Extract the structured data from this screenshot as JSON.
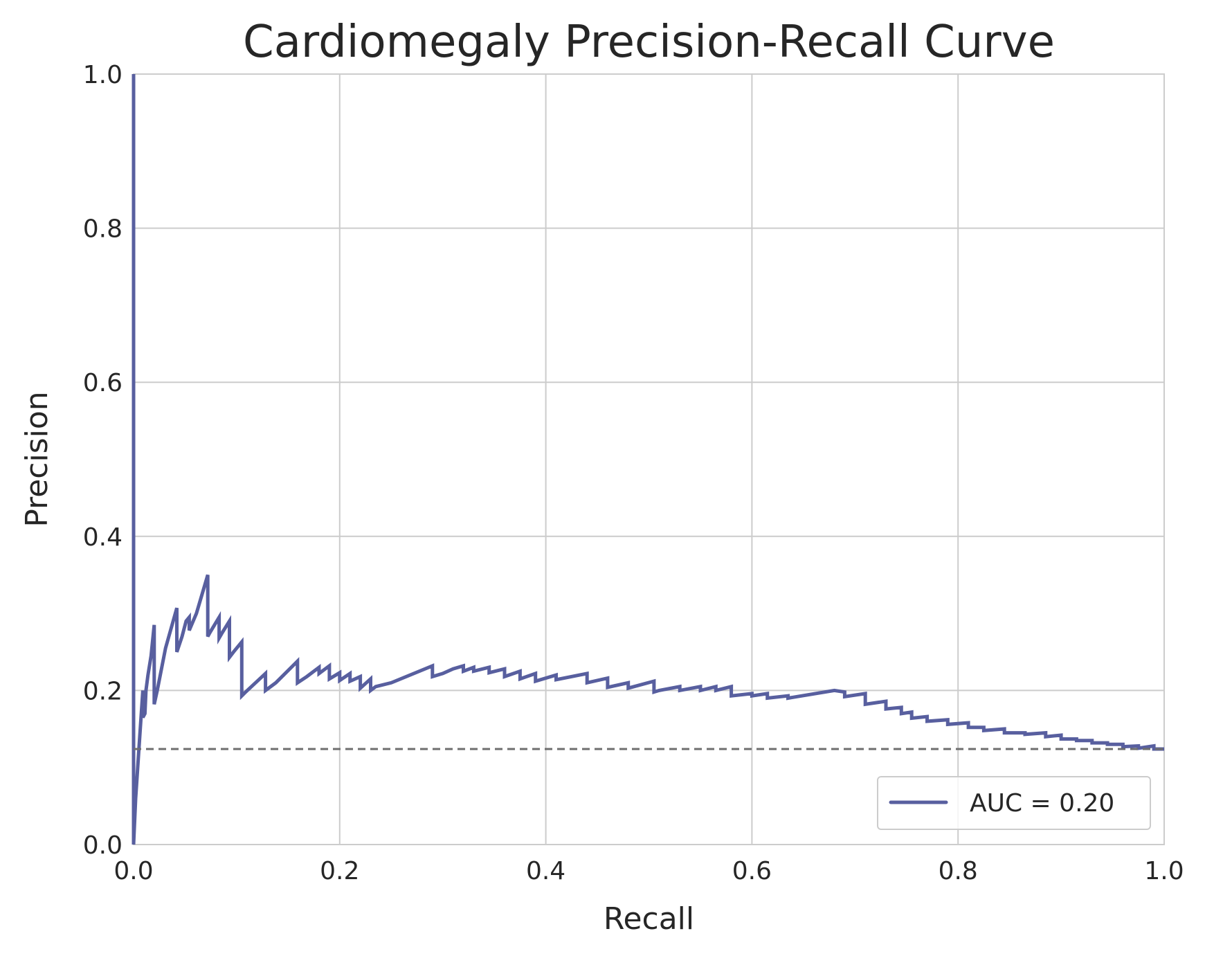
{
  "chart_data": {
    "type": "line",
    "title": "Cardiomegaly Precision-Recall Curve",
    "xlabel": "Recall",
    "ylabel": "Precision",
    "xlim": [
      0.0,
      1.0
    ],
    "ylim": [
      0.0,
      1.0
    ],
    "xticks": [
      "0.0",
      "0.2",
      "0.4",
      "0.6",
      "0.8",
      "1.0"
    ],
    "yticks": [
      "0.0",
      "0.2",
      "0.4",
      "0.6",
      "0.8",
      "1.0"
    ],
    "grid": true,
    "legend_position": "lower-right",
    "colors": {
      "curve": "#585f9f",
      "baseline": "#6e6e6e"
    },
    "series": [
      {
        "name": "AUC = 0.20",
        "style": "solid",
        "x": [
          0.0,
          0.0,
          0.0,
          0.002,
          0.006,
          0.009,
          0.009,
          0.011,
          0.012,
          0.014,
          0.017,
          0.02,
          0.02,
          0.023,
          0.031,
          0.042,
          0.042,
          0.047,
          0.051,
          0.054,
          0.054,
          0.061,
          0.072,
          0.072,
          0.074,
          0.083,
          0.083,
          0.086,
          0.093,
          0.093,
          0.097,
          0.105,
          0.105,
          0.108,
          0.128,
          0.128,
          0.138,
          0.159,
          0.159,
          0.168,
          0.18,
          0.18,
          0.19,
          0.19,
          0.2,
          0.2,
          0.21,
          0.21,
          0.22,
          0.22,
          0.23,
          0.23,
          0.235,
          0.25,
          0.29,
          0.29,
          0.3,
          0.31,
          0.32,
          0.32,
          0.33,
          0.33,
          0.345,
          0.345,
          0.36,
          0.36,
          0.375,
          0.375,
          0.39,
          0.39,
          0.41,
          0.41,
          0.44,
          0.44,
          0.46,
          0.46,
          0.48,
          0.48,
          0.505,
          0.505,
          0.51,
          0.53,
          0.53,
          0.55,
          0.55,
          0.565,
          0.565,
          0.58,
          0.58,
          0.6,
          0.6,
          0.615,
          0.615,
          0.635,
          0.635,
          0.68,
          0.69,
          0.69,
          0.71,
          0.71,
          0.73,
          0.73,
          0.745,
          0.745,
          0.755,
          0.755,
          0.77,
          0.77,
          0.79,
          0.79,
          0.81,
          0.81,
          0.825,
          0.825,
          0.845,
          0.845,
          0.865,
          0.865,
          0.885,
          0.885,
          0.9,
          0.9,
          0.915,
          0.915,
          0.93,
          0.93,
          0.945,
          0.945,
          0.96,
          0.96,
          0.975,
          0.975,
          0.99,
          0.99,
          1.0
        ],
        "y": [
          0.0,
          1.0,
          0.0,
          0.06,
          0.14,
          0.2,
          0.165,
          0.17,
          0.2,
          0.22,
          0.245,
          0.285,
          0.182,
          0.2,
          0.255,
          0.307,
          0.25,
          0.27,
          0.29,
          0.295,
          0.278,
          0.3,
          0.35,
          0.27,
          0.275,
          0.295,
          0.268,
          0.275,
          0.29,
          0.243,
          0.25,
          0.263,
          0.193,
          0.197,
          0.222,
          0.2,
          0.21,
          0.238,
          0.21,
          0.218,
          0.23,
          0.222,
          0.232,
          0.215,
          0.223,
          0.213,
          0.222,
          0.212,
          0.218,
          0.203,
          0.215,
          0.2,
          0.205,
          0.21,
          0.232,
          0.218,
          0.222,
          0.228,
          0.232,
          0.225,
          0.23,
          0.225,
          0.23,
          0.223,
          0.228,
          0.218,
          0.225,
          0.215,
          0.222,
          0.212,
          0.22,
          0.214,
          0.222,
          0.21,
          0.216,
          0.204,
          0.21,
          0.203,
          0.212,
          0.198,
          0.2,
          0.205,
          0.2,
          0.205,
          0.2,
          0.205,
          0.2,
          0.205,
          0.193,
          0.196,
          0.193,
          0.196,
          0.19,
          0.193,
          0.19,
          0.2,
          0.198,
          0.192,
          0.196,
          0.182,
          0.186,
          0.176,
          0.178,
          0.17,
          0.172,
          0.164,
          0.166,
          0.16,
          0.162,
          0.156,
          0.158,
          0.152,
          0.152,
          0.148,
          0.15,
          0.145,
          0.145,
          0.143,
          0.145,
          0.14,
          0.142,
          0.137,
          0.137,
          0.135,
          0.135,
          0.132,
          0.132,
          0.13,
          0.13,
          0.127,
          0.128,
          0.125,
          0.128,
          0.124,
          0.124
        ]
      },
      {
        "name": "",
        "style": "dashed",
        "x": [
          0.0,
          1.0
        ],
        "y": [
          0.124,
          0.124
        ]
      }
    ]
  }
}
